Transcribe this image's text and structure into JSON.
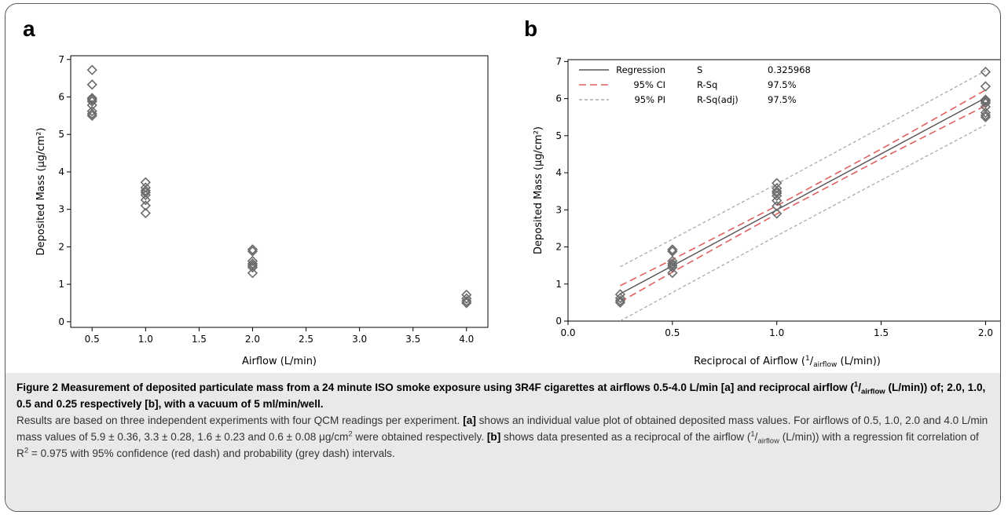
{
  "figure": {
    "panel_a_label": "a",
    "panel_b_label": "b",
    "caption": {
      "title_parts": [
        "Figure 2 Measurement of deposited particulate mass from a 24 minute ISO smoke exposure using 3R4F cigarettes at airflows 0.5-4.0 L/min [a] and reciprocal airflow (",
        "1",
        "/",
        "airflow",
        " (L/min)) of; 2.0, 1.0, 0.5 and 0.25 respectively [b], with a vacuum of 5 ml/min/well."
      ],
      "line1": "Results are based on three independent experiments with four QCM readings per experiment.",
      "a_ref": "[a]",
      "line2": " shows an individual value plot of obtained deposited mass values. For airflows of 0.5, 1.0, 2.0 and 4.0 L/min mass values of 5.9 ± 0.36, 3.3 ± 0.28, 1.6 ± 0.23 and 0.6 ± 0.08 μg/cm",
      "sup2": "2",
      "line2b": " were obtained respectively.",
      "b_ref": "[b]",
      "line3a": " shows data presented as a reciprocal of the airflow (",
      "line3_sup": "1",
      "line3_slash": "/",
      "line3_sub": "airflow",
      "line3b": " (L/min)) with a regression fit correlation of R",
      "line3_r2": "2",
      "line3c": " = 0.975 with",
      "line4": "95% confidence (red dash) and probability (grey dash) intervals."
    }
  },
  "chart_data": [
    {
      "type": "scatter",
      "panel": "a",
      "xlabel": "Airflow (L/min)",
      "ylabel": "Deposited Mass (μg/cm²)",
      "x_ticks": [
        "0.5",
        "1.0",
        "1.5",
        "2.0",
        "2.5",
        "3.0",
        "3.5",
        "4.0"
      ],
      "y_ticks": [
        "0",
        "1",
        "2",
        "3",
        "4",
        "5",
        "6",
        "7"
      ],
      "xlim": [
        0.3,
        4.2
      ],
      "ylim": [
        -0.15,
        7.1
      ],
      "grid": false,
      "series": [
        {
          "points": [
            {
              "x": 0.5,
              "y": 6.72
            },
            {
              "x": 0.5,
              "y": 6.33
            },
            {
              "x": 0.5,
              "y": 5.97
            },
            {
              "x": 0.5,
              "y": 5.93
            },
            {
              "x": 0.5,
              "y": 5.88
            },
            {
              "x": 0.5,
              "y": 5.78
            },
            {
              "x": 0.5,
              "y": 5.62
            },
            {
              "x": 0.5,
              "y": 5.55
            },
            {
              "x": 0.5,
              "y": 5.5
            },
            {
              "x": 1.0,
              "y": 3.72
            },
            {
              "x": 1.0,
              "y": 3.58
            },
            {
              "x": 1.0,
              "y": 3.5
            },
            {
              "x": 1.0,
              "y": 3.45
            },
            {
              "x": 1.0,
              "y": 3.38
            },
            {
              "x": 1.0,
              "y": 3.25
            },
            {
              "x": 1.0,
              "y": 3.1
            },
            {
              "x": 1.0,
              "y": 2.9
            },
            {
              "x": 2.0,
              "y": 1.93
            },
            {
              "x": 2.0,
              "y": 1.88
            },
            {
              "x": 2.0,
              "y": 1.62
            },
            {
              "x": 2.0,
              "y": 1.55
            },
            {
              "x": 2.0,
              "y": 1.5
            },
            {
              "x": 2.0,
              "y": 1.45
            },
            {
              "x": 2.0,
              "y": 1.3
            },
            {
              "x": 4.0,
              "y": 0.72
            },
            {
              "x": 4.0,
              "y": 0.62
            },
            {
              "x": 4.0,
              "y": 0.55
            },
            {
              "x": 4.0,
              "y": 0.5
            }
          ]
        }
      ]
    },
    {
      "type": "scatter",
      "panel": "b",
      "xlabel_parts": [
        "Reciprocal of Airflow (",
        "1",
        "/",
        "airflow",
        " (L/min))"
      ],
      "ylabel": "Deposited Mass (μg/cm²)",
      "x_ticks": [
        "0.0",
        "0.5",
        "1.0",
        "1.5",
        "2.0"
      ],
      "y_ticks": [
        "0",
        "1",
        "2",
        "3",
        "4",
        "5",
        "6",
        "7"
      ],
      "xlim": [
        0.0,
        2.1
      ],
      "ylim": [
        0,
        7.05
      ],
      "grid": false,
      "legend": {
        "placement": "top-left",
        "entries": [
          {
            "label": "Regression",
            "stat_name": "S",
            "stat_value": "0.325968",
            "color": "#555555",
            "dash": "solid"
          },
          {
            "label": "95% CI",
            "stat_name": "R-Sq",
            "stat_value": "97.5%",
            "color": "#e06060",
            "dash": "long"
          },
          {
            "label": "95% PI",
            "stat_name": "R-Sq(adj)",
            "stat_value": "97.5%",
            "color": "#aaaaaa",
            "dash": "short"
          }
        ]
      },
      "regression": {
        "intercept": -0.02,
        "slope": 3.02
      },
      "ci_half_width": [
        [
          0.25,
          0.22
        ],
        [
          0.5,
          0.17
        ],
        [
          1.0,
          0.11
        ],
        [
          1.5,
          0.13
        ],
        [
          2.0,
          0.21
        ]
      ],
      "pi_half_width": [
        [
          0.25,
          0.73
        ],
        [
          0.5,
          0.72
        ],
        [
          1.0,
          0.7
        ],
        [
          1.5,
          0.71
        ],
        [
          2.0,
          0.73
        ]
      ],
      "series": [
        {
          "points": [
            {
              "x": 0.25,
              "y": 0.72
            },
            {
              "x": 0.25,
              "y": 0.62
            },
            {
              "x": 0.25,
              "y": 0.55
            },
            {
              "x": 0.25,
              "y": 0.5
            },
            {
              "x": 0.5,
              "y": 1.93
            },
            {
              "x": 0.5,
              "y": 1.88
            },
            {
              "x": 0.5,
              "y": 1.62
            },
            {
              "x": 0.5,
              "y": 1.55
            },
            {
              "x": 0.5,
              "y": 1.5
            },
            {
              "x": 0.5,
              "y": 1.45
            },
            {
              "x": 0.5,
              "y": 1.3
            },
            {
              "x": 1.0,
              "y": 3.72
            },
            {
              "x": 1.0,
              "y": 3.58
            },
            {
              "x": 1.0,
              "y": 3.5
            },
            {
              "x": 1.0,
              "y": 3.45
            },
            {
              "x": 1.0,
              "y": 3.38
            },
            {
              "x": 1.0,
              "y": 3.25
            },
            {
              "x": 1.0,
              "y": 3.1
            },
            {
              "x": 1.0,
              "y": 2.9
            },
            {
              "x": 2.0,
              "y": 6.72
            },
            {
              "x": 2.0,
              "y": 6.33
            },
            {
              "x": 2.0,
              "y": 5.97
            },
            {
              "x": 2.0,
              "y": 5.93
            },
            {
              "x": 2.0,
              "y": 5.88
            },
            {
              "x": 2.0,
              "y": 5.78
            },
            {
              "x": 2.0,
              "y": 5.62
            },
            {
              "x": 2.0,
              "y": 5.55
            },
            {
              "x": 2.0,
              "y": 5.5
            }
          ]
        }
      ]
    }
  ]
}
